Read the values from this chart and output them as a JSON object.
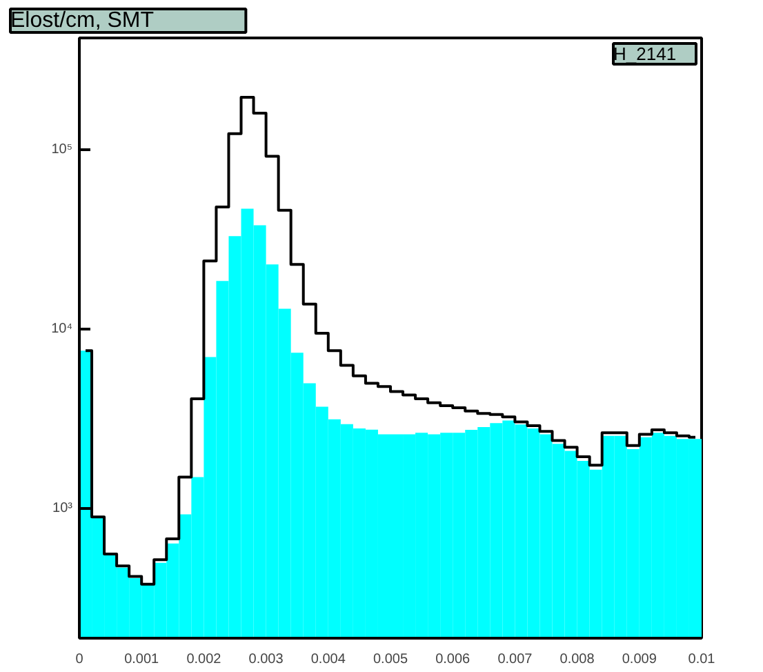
{
  "chart_data": {
    "type": "histogram",
    "title": "Elost/cm, SMT",
    "annotations": [
      "H_2141"
    ],
    "bins": [
      0,
      0.0002,
      0.0004,
      0.0006,
      0.0008,
      0.001,
      0.0012,
      0.0014,
      0.0016,
      0.0018,
      0.002,
      0.0022,
      0.0024,
      0.0026,
      0.0028,
      0.003,
      0.0032,
      0.0034,
      0.0036,
      0.0038,
      0.004,
      0.0042,
      0.0044,
      0.0046,
      0.0048,
      0.005,
      0.0052,
      0.0054,
      0.0056,
      0.0058,
      0.006,
      0.0062,
      0.0064,
      0.0066,
      0.0068,
      0.007,
      0.0072,
      0.0074,
      0.0076,
      0.0078,
      0.008,
      0.0082,
      0.0084,
      0.0086,
      0.0088,
      0.009,
      0.0092,
      0.0094,
      0.0096,
      0.0098,
      0.01
    ],
    "series": [
      {
        "type": "histogram",
        "color": "#00ffff",
        "values": [
          7600,
          900,
          550,
          470,
          410,
          380,
          500,
          640,
          930,
          1500,
          7000,
          18600,
          33000,
          47000,
          38000,
          23000,
          13000,
          7400,
          5000,
          3700,
          3150,
          2960,
          2800,
          2760,
          2600,
          2600,
          2600,
          2650,
          2600,
          2650,
          2650,
          2750,
          2850,
          3000,
          3100,
          2950,
          2800,
          2600,
          2300,
          2100,
          1850,
          1650,
          2550,
          2550,
          2150,
          2500,
          2650,
          2550,
          2450,
          2450
        ]
      },
      {
        "type": "step",
        "color": "#000000",
        "x": [
          0.0001,
          0.0003,
          0.0005,
          0.0007,
          0.0009,
          0.0011,
          0.0013,
          0.0015,
          0.0017,
          0.0019,
          0.0021,
          0.0023,
          0.0025,
          0.0027,
          0.0029,
          0.0031,
          0.0033,
          0.0035,
          0.0037,
          0.0039,
          0.0041,
          0.0043,
          0.0045,
          0.0047,
          0.0049,
          0.0051,
          0.0053,
          0.0055,
          0.0057,
          0.0059,
          0.0061,
          0.0063,
          0.0065,
          0.0067,
          0.0069,
          0.0071,
          0.0073,
          0.0075,
          0.0077,
          0.0079,
          0.0081,
          0.0083,
          0.0085,
          0.0087,
          0.0089,
          0.0091,
          0.0093,
          0.0095,
          0.0097,
          0.0099
        ],
        "values": [
          7600,
          900,
          560,
          480,
          420,
          380,
          520,
          680,
          1500,
          4100,
          24000,
          48000,
          123000,
          196000,
          160000,
          92000,
          46000,
          23000,
          13800,
          9500,
          7600,
          6300,
          5500,
          5000,
          4800,
          4500,
          4300,
          4100,
          3900,
          3750,
          3650,
          3500,
          3400,
          3350,
          3250,
          3050,
          2900,
          2700,
          2400,
          2200,
          1950,
          1750,
          2650,
          2650,
          2250,
          2600,
          2750,
          2650,
          2550,
          2500
        ]
      }
    ],
    "log": "y",
    "grid": false,
    "xlim": [
      0,
      0.01
    ],
    "xticks": [
      0,
      0.001,
      0.002,
      0.003,
      0.004,
      0.005,
      0.006,
      0.007,
      0.008,
      0.009,
      0.01
    ],
    "ylim": [
      190,
      420000
    ],
    "yticks": [
      {
        "value": 1000,
        "label": "10³"
      },
      {
        "value": 10000,
        "label": "10⁴"
      },
      {
        "value": 100000,
        "label": "10⁵"
      }
    ]
  }
}
